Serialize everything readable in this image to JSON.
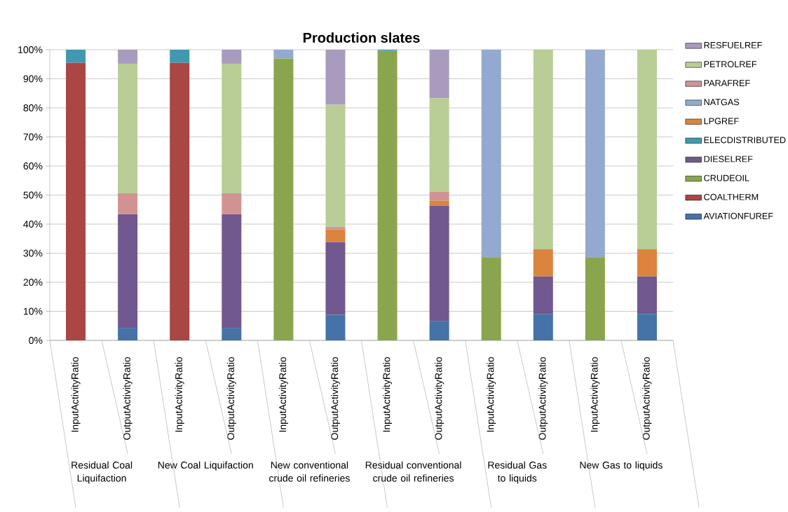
{
  "chart_data": {
    "type": "bar",
    "title": "Production slates",
    "stacked": true,
    "legend": "right",
    "grid": "y",
    "categories": [
      "InputActivityRatio",
      "OutputActivityRatio",
      "InputActivityRatio",
      "OutputActivityRatio",
      "InputActivityRatio",
      "OutputActivityRatio",
      "InputActivityRatio",
      "OutputActivityRatio",
      "InputActivityRatio",
      "OutputActivityRatio",
      "InputActivityRatio",
      "OutputActivityRatio"
    ],
    "annotations": [
      "Residual Coal Liquifaction",
      "New Coal Liquifaction",
      "New conventional crude oil refineries",
      "Residual conventional crude oil refineries",
      "Residual Gas to liquids",
      "New Gas to liquids"
    ],
    "ylim": [
      0,
      100
    ],
    "yticks": [
      {
        "value": 0,
        "label": "0%"
      },
      {
        "value": 10,
        "label": "10%"
      },
      {
        "value": 20,
        "label": "20%"
      },
      {
        "value": 30,
        "label": "30%"
      },
      {
        "value": 40,
        "label": "40%"
      },
      {
        "value": 50,
        "label": "50%"
      },
      {
        "value": 60,
        "label": "60%"
      },
      {
        "value": 70,
        "label": "70%"
      },
      {
        "value": 80,
        "label": "80%"
      },
      {
        "value": 90,
        "label": "90%"
      },
      {
        "value": 100,
        "label": "100%"
      }
    ],
    "series": [
      {
        "name": "AVIATIONFUREF",
        "color": "#4572a7",
        "values": [
          null,
          4.3,
          null,
          4.3,
          null,
          8.8,
          null,
          6.7,
          null,
          9.1,
          null,
          9.1
        ]
      },
      {
        "name": "COALTHERM",
        "color": "#aa4643",
        "values": [
          95.5,
          null,
          95.5,
          null,
          null,
          null,
          null,
          null,
          null,
          null,
          null,
          null
        ]
      },
      {
        "name": "CRUDEOIL",
        "color": "#89a54e",
        "values": [
          null,
          null,
          null,
          null,
          97.0,
          null,
          99.6,
          null,
          28.6,
          null,
          28.6,
          null
        ]
      },
      {
        "name": "DIESELREF",
        "color": "#71588f",
        "values": [
          null,
          39.1,
          null,
          39.1,
          null,
          25.0,
          null,
          39.7,
          null,
          12.9,
          null,
          12.9
        ]
      },
      {
        "name": "ELECDISTRIBUTED",
        "color": "#4198af",
        "values": [
          4.5,
          null,
          4.5,
          null,
          null,
          null,
          0.4,
          null,
          null,
          null,
          null,
          null
        ]
      },
      {
        "name": "LPGREF",
        "color": "#db843d",
        "values": [
          null,
          null,
          null,
          null,
          null,
          4.4,
          null,
          1.6,
          null,
          9.3,
          null,
          9.3
        ]
      },
      {
        "name": "NATGAS",
        "color": "#93a9cf",
        "values": [
          null,
          null,
          null,
          null,
          3.0,
          null,
          null,
          null,
          71.4,
          null,
          71.4,
          null
        ]
      },
      {
        "name": "PARAFREF",
        "color": "#d19392",
        "values": [
          null,
          7.2,
          null,
          7.2,
          null,
          0.8,
          null,
          3.2,
          null,
          null,
          null,
          null
        ]
      },
      {
        "name": "PETROLREF",
        "color": "#b9cd96",
        "values": [
          null,
          44.6,
          null,
          44.6,
          null,
          42.1,
          null,
          32.1,
          null,
          68.7,
          null,
          68.7
        ]
      },
      {
        "name": "RESFUELREF",
        "color": "#a99bbd",
        "values": [
          null,
          4.8,
          null,
          4.8,
          null,
          18.9,
          null,
          16.7,
          null,
          null,
          null,
          null
        ]
      }
    ]
  }
}
